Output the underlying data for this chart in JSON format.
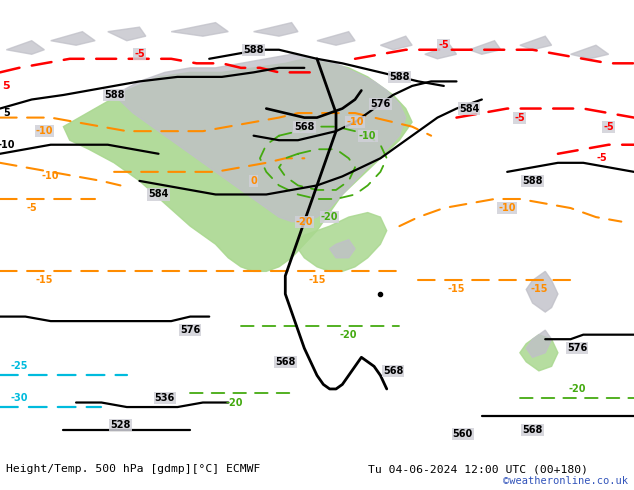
{
  "title_left": "Height/Temp. 500 hPa [gdmp][°C] ECMWF",
  "title_right": "Tu 04-06-2024 12:00 UTC (00+180)",
  "credit": "©weatheronline.co.uk",
  "bg_color": "#d0d0d8",
  "land_color": "#c0c0c8",
  "green_color": "#aad890",
  "white_bar_color": "#ffffff",
  "text_color": "#000000",
  "credit_color": "#3355bb"
}
